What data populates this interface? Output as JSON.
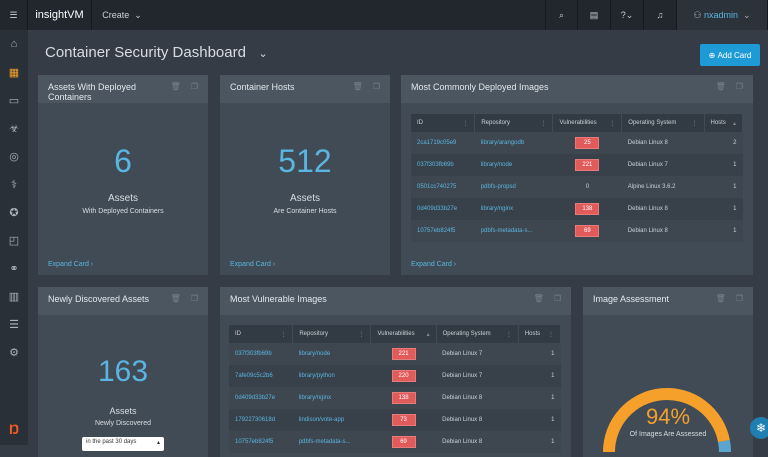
{
  "topbar": {
    "logo": "insightVM",
    "create": "Create",
    "user": "nxadmin"
  },
  "page": {
    "title": "Container Security Dashboard",
    "add_card": "Add Card"
  },
  "cards": {
    "assets": {
      "title": "Assets With Deployed Containers",
      "value": "6",
      "label": "Assets",
      "sublabel": "With Deployed Containers",
      "expand": "Expand Card"
    },
    "hosts": {
      "title": "Container Hosts",
      "value": "512",
      "label": "Assets",
      "sublabel": "Are Container Hosts",
      "expand": "Expand Card"
    },
    "common": {
      "title": "Most Commonly Deployed Images",
      "expand": "Expand Card",
      "columns": [
        "ID",
        "Repository",
        "Vulnerabilities",
        "Operating System",
        "Hosts"
      ],
      "rows": [
        [
          "2ca1719c05e9",
          "library/arangodb",
          "25",
          "Debian Linux 8",
          "2"
        ],
        [
          "037f303fb69b",
          "library/node",
          "221",
          "Debian Linux 7",
          "1"
        ],
        [
          "0501cc740275",
          "pdbfs-propsd",
          "0",
          "Alpine Linux 3.6.2",
          "1"
        ],
        [
          "0d409d33b27e",
          "library/nginx",
          "138",
          "Debian Linux 8",
          "1"
        ],
        [
          "10757eb824f5",
          "pdbfs-metadata-s...",
          "69",
          "Debian Linux 8",
          "1"
        ]
      ]
    },
    "newly": {
      "title": "Newly Discovered Assets",
      "value": "163",
      "label": "Assets",
      "sublabel": "Newly Discovered",
      "select": "in the past 30 days"
    },
    "vuln": {
      "title": "Most Vulnerable Images",
      "columns": [
        "ID",
        "Repository",
        "Vulnerabilities",
        "Operating System",
        "Hosts"
      ],
      "rows": [
        [
          "037f303fb69b",
          "library/node",
          "221",
          "Debian Linux 7",
          "1"
        ],
        [
          "7afe09c5c2b6",
          "library/python",
          "220",
          "Debian Linux 7",
          "1"
        ],
        [
          "0d409d33b27e",
          "library/nginx",
          "138",
          "Debian Linux 8",
          "1"
        ],
        [
          "17922730618d",
          "lindison/vote-app",
          "73",
          "Debian Linux 8",
          "1"
        ],
        [
          "10757eb824f5",
          "pdbfs-metadata-s...",
          "69",
          "Debian Linux 8",
          "1"
        ]
      ]
    },
    "image": {
      "title": "Image Assessment",
      "value": "94%",
      "percent": 94,
      "label": "Of Images Are Assessed",
      "colors": {
        "assessed": "#f5a02a",
        "unassessed": "#5aa6cf"
      }
    }
  }
}
